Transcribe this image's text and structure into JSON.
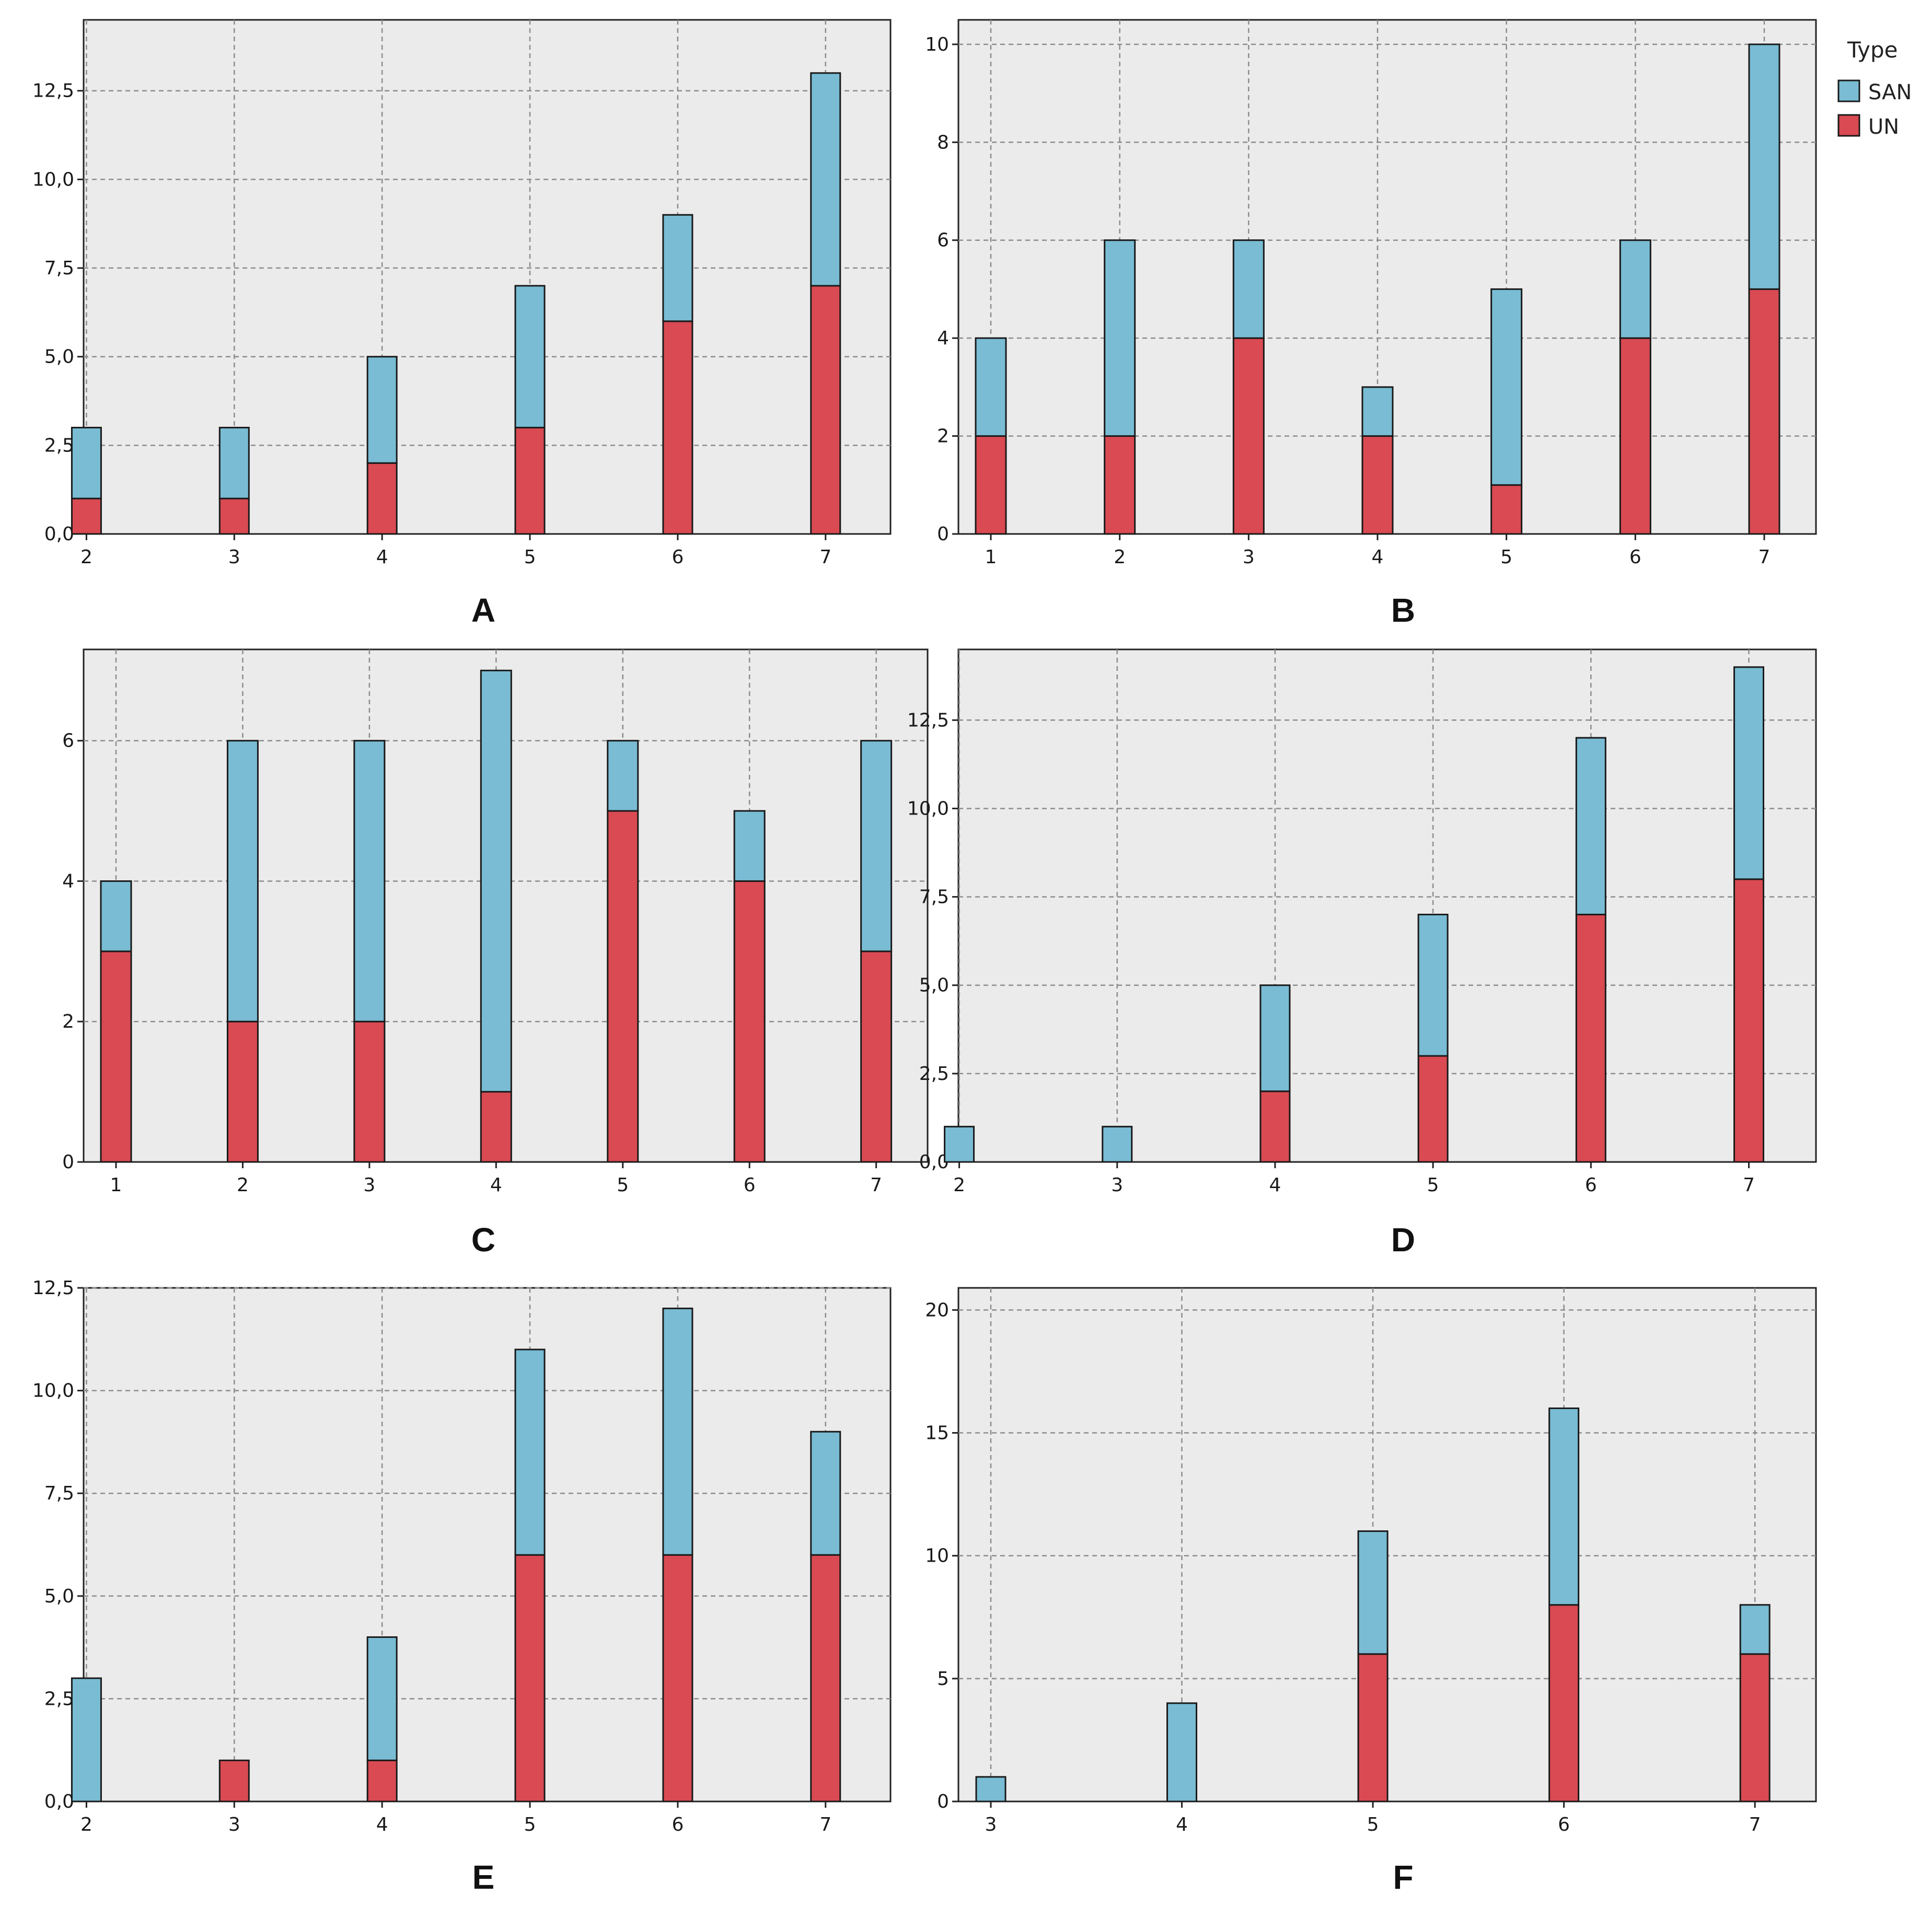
{
  "colors": {
    "SAN": "#79bcd4",
    "UN": "#d94a52",
    "plot_bg": "#ebebeb"
  },
  "legend": {
    "title": "Type",
    "items": [
      {
        "key": "SAN",
        "label": "SAN"
      },
      {
        "key": "UN",
        "label": "UN"
      }
    ]
  },
  "chart_data": [
    {
      "panel": "A",
      "type": "bar",
      "stacked": true,
      "categories": [
        2,
        3,
        4,
        5,
        6,
        7
      ],
      "x_ticks": [
        "2",
        "3",
        "4",
        "5",
        "6",
        "7"
      ],
      "ylim": [
        0,
        14.5
      ],
      "y_ticks": [
        0,
        2.5,
        5,
        7.5,
        10,
        12.5
      ],
      "y_tick_labels": [
        "0,0",
        "2,5",
        "5,0",
        "7,5",
        "10,0",
        "12,5"
      ],
      "series": [
        {
          "name": "UN",
          "values": [
            1,
            1,
            2,
            3,
            6,
            7
          ]
        },
        {
          "name": "SAN",
          "values": [
            2,
            2,
            3,
            4,
            3,
            6
          ]
        }
      ]
    },
    {
      "panel": "B",
      "type": "bar",
      "stacked": true,
      "categories": [
        1,
        2,
        3,
        4,
        5,
        6,
        7
      ],
      "x_ticks": [
        "1",
        "2",
        "3",
        "4",
        "5",
        "6",
        "7"
      ],
      "ylim": [
        0,
        10.5
      ],
      "y_ticks": [
        0,
        2,
        4,
        6,
        8,
        10
      ],
      "y_tick_labels": [
        "0",
        "2",
        "4",
        "6",
        "8",
        "10"
      ],
      "series": [
        {
          "name": "UN",
          "values": [
            2,
            2,
            4,
            2,
            1,
            4,
            5
          ]
        },
        {
          "name": "SAN",
          "values": [
            2,
            4,
            2,
            1,
            4,
            2,
            5
          ]
        }
      ]
    },
    {
      "panel": "C",
      "type": "bar",
      "stacked": true,
      "categories": [
        1,
        2,
        3,
        4,
        5,
        6,
        7
      ],
      "x_ticks": [
        "1",
        "2",
        "3",
        "4",
        "5",
        "6",
        "7"
      ],
      "ylim": [
        0,
        7.3
      ],
      "y_ticks": [
        0,
        2,
        4,
        6
      ],
      "y_tick_labels": [
        "0",
        "2",
        "4",
        "6"
      ],
      "series": [
        {
          "name": "UN",
          "values": [
            3,
            2,
            2,
            1,
            5,
            4,
            3
          ]
        },
        {
          "name": "SAN",
          "values": [
            1,
            4,
            4,
            6,
            1,
            1,
            3
          ]
        }
      ]
    },
    {
      "panel": "D",
      "type": "bar",
      "stacked": true,
      "categories": [
        2,
        3,
        4,
        5,
        6,
        7
      ],
      "x_ticks": [
        "2",
        "3",
        "4",
        "5",
        "6",
        "7"
      ],
      "ylim": [
        0,
        14.5
      ],
      "y_ticks": [
        0,
        2.5,
        5,
        7.5,
        10,
        12.5
      ],
      "y_tick_labels": [
        "0,0",
        "2,5",
        "5,0",
        "7,5",
        "10,0",
        "12,5"
      ],
      "series": [
        {
          "name": "UN",
          "values": [
            0,
            0,
            2,
            3,
            7,
            8
          ]
        },
        {
          "name": "SAN",
          "values": [
            1,
            1,
            3,
            4,
            5,
            6
          ]
        }
      ]
    },
    {
      "panel": "E",
      "type": "bar",
      "stacked": true,
      "categories": [
        2,
        3,
        4,
        5,
        6,
        7
      ],
      "x_ticks": [
        "2",
        "3",
        "4",
        "5",
        "6",
        "7"
      ],
      "ylim": [
        0,
        12.5
      ],
      "y_ticks": [
        0,
        2.5,
        5,
        7.5,
        10,
        12.5
      ],
      "y_tick_labels": [
        "0,0",
        "2,5",
        "5,0",
        "7,5",
        "10,0",
        "12,5"
      ],
      "series": [
        {
          "name": "UN",
          "values": [
            0,
            1,
            1,
            6,
            6,
            6
          ]
        },
        {
          "name": "SAN",
          "values": [
            3,
            0,
            3,
            5,
            6,
            3
          ]
        }
      ]
    },
    {
      "panel": "F",
      "type": "bar",
      "stacked": true,
      "categories": [
        3,
        4,
        5,
        6,
        7
      ],
      "x_ticks": [
        "3",
        "4",
        "5",
        "6",
        "7"
      ],
      "ylim": [
        0,
        20.9
      ],
      "y_ticks": [
        0,
        5,
        10,
        15,
        20
      ],
      "y_tick_labels": [
        "0",
        "5",
        "10",
        "15",
        "20"
      ],
      "series": [
        {
          "name": "UN",
          "values": [
            0,
            0,
            6,
            8,
            6
          ]
        },
        {
          "name": "SAN",
          "values": [
            1,
            4,
            5,
            8,
            2
          ]
        }
      ]
    }
  ]
}
